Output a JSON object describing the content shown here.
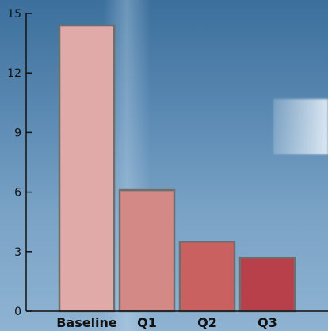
{
  "chart_data": {
    "type": "bar",
    "categories": [
      "Baseline",
      "Q1",
      "Q2",
      "Q3"
    ],
    "values": [
      14.4,
      6.1,
      3.5,
      2.7
    ],
    "title": "",
    "xlabel": "",
    "ylabel": "",
    "ylim": [
      0,
      15
    ],
    "yticks": [
      0,
      3,
      6,
      9,
      12,
      15
    ],
    "grid": false,
    "colors": [
      "#dfaaa7",
      "#d38a86",
      "#c8615f",
      "#b8404a"
    ],
    "bar_edge_color": "#6e6e6e",
    "axis_color": "#111111"
  }
}
